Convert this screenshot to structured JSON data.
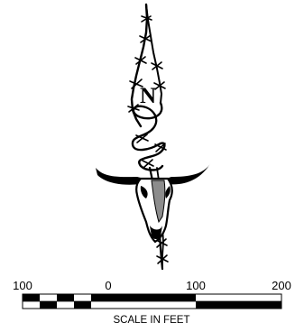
{
  "north_arrow": {
    "letter": "N",
    "ink_color": "#000000",
    "accent_color": "#8c8c8c"
  },
  "scale_bar": {
    "ticks": [
      "100",
      "0",
      "100",
      "200"
    ],
    "caption": "SCALE IN FEET"
  }
}
